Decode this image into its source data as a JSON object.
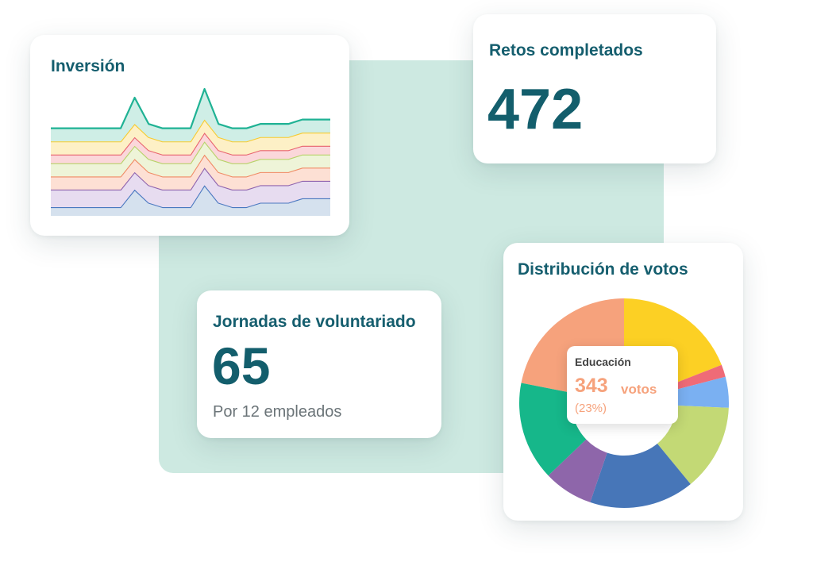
{
  "cards": {
    "inversion": {
      "title": "Inversión"
    },
    "retos": {
      "title": "Retos completados",
      "value": "472"
    },
    "jornadas": {
      "title": "Jornadas de voluntariado",
      "value": "65",
      "subtitle": "Por 12 empleados"
    },
    "distribucion": {
      "title": "Distribución de votos",
      "tooltip": {
        "label": "Educación",
        "value": "343",
        "unit": "votos",
        "percent": "(23%)"
      }
    }
  },
  "chart_data": [
    {
      "type": "area",
      "title": "Inversión",
      "stacked": true,
      "x": [
        0,
        1,
        2,
        3,
        4,
        5,
        6,
        7,
        8,
        9,
        10,
        11,
        12,
        13,
        14,
        15,
        16,
        17,
        18,
        19,
        20
      ],
      "series": [
        {
          "color": "#4a78c0",
          "fill": "#d5e1ee",
          "values": [
            2,
            2,
            2,
            2,
            2,
            2,
            6,
            3,
            2,
            2,
            2,
            7,
            3,
            2,
            2,
            3,
            3,
            3,
            4,
            4,
            4
          ]
        },
        {
          "color": "#8f63ae",
          "fill": "#e7dcf0",
          "values": [
            4,
            4,
            4,
            4,
            4,
            4,
            4,
            4,
            4,
            4,
            4,
            4,
            4,
            4,
            4,
            4,
            4,
            4,
            4,
            4,
            4
          ]
        },
        {
          "color": "#f08a64",
          "fill": "#fde0d4",
          "values": [
            3,
            3,
            3,
            3,
            3,
            3,
            3,
            3,
            3,
            3,
            3,
            3,
            3,
            3,
            3,
            3,
            3,
            3,
            3,
            3,
            3
          ]
        },
        {
          "color": "#b8d26a",
          "fill": "#eef4d8",
          "values": [
            3,
            3,
            3,
            3,
            3,
            3,
            3,
            3,
            3,
            3,
            3,
            3,
            3,
            3,
            3,
            3,
            3,
            3,
            3,
            3,
            3
          ]
        },
        {
          "color": "#e8636e",
          "fill": "#fbd7da",
          "values": [
            2,
            2,
            2,
            2,
            2,
            2,
            2,
            2,
            2,
            2,
            2,
            2,
            2,
            2,
            2,
            2,
            2,
            2,
            2,
            2,
            2
          ]
        },
        {
          "color": "#f7cb2e",
          "fill": "#fdf0c6",
          "values": [
            3,
            3,
            3,
            3,
            3,
            3,
            3,
            3,
            3,
            3,
            3,
            3,
            3,
            3,
            3,
            3,
            3,
            3,
            3,
            3,
            3
          ]
        },
        {
          "color": "#1fb294",
          "fill": "#cfeee6",
          "values": [
            3,
            3,
            3,
            3,
            3,
            3,
            6,
            3,
            3,
            3,
            3,
            7,
            3,
            3,
            3,
            3,
            3,
            3,
            3,
            3,
            3
          ]
        }
      ]
    },
    {
      "type": "pie",
      "title": "Distribución de votos",
      "donut": true,
      "slices": [
        {
          "name": "Educación",
          "value": 23,
          "color": "#f6a27c"
        },
        {
          "name": "",
          "value": 20,
          "color": "#fcd024"
        },
        {
          "name": "",
          "value": 2,
          "color": "#ef6b77"
        },
        {
          "name": "",
          "value": 5,
          "color": "#7ab0f2"
        },
        {
          "name": "",
          "value": 14,
          "color": "#c3d975"
        },
        {
          "name": "",
          "value": 17,
          "color": "#4776b8"
        },
        {
          "name": "",
          "value": 8,
          "color": "#8e66aa"
        },
        {
          "name": "",
          "value": 16,
          "color": "#16b78a"
        }
      ]
    }
  ]
}
